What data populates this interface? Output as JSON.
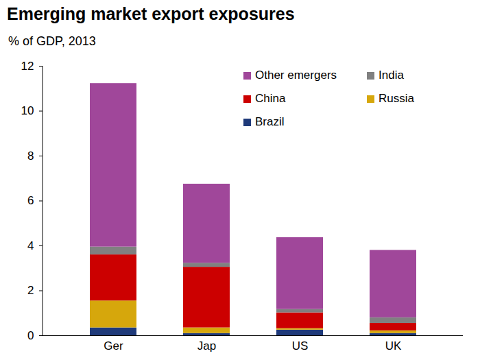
{
  "chart_data": {
    "type": "bar",
    "stacked": true,
    "title": "Emerging market export exposures",
    "subtitle": "% of GDP, 2013",
    "categories": [
      "Ger",
      "Jap",
      "US",
      "UK"
    ],
    "series": [
      {
        "name": "Brazil",
        "color": "#1f3a7a",
        "values": [
          0.35,
          0.1,
          0.25,
          0.1
        ]
      },
      {
        "name": "Russia",
        "color": "#d6a70c",
        "values": [
          1.2,
          0.25,
          0.07,
          0.12
        ]
      },
      {
        "name": "China",
        "color": "#cc0000",
        "values": [
          2.05,
          2.7,
          0.7,
          0.33
        ]
      },
      {
        "name": "India",
        "color": "#808080",
        "values": [
          0.35,
          0.18,
          0.15,
          0.25
        ]
      },
      {
        "name": "Other emergers",
        "color": "#a0479a",
        "values": [
          7.28,
          3.52,
          3.2,
          3.0
        ]
      }
    ],
    "ylim": [
      0,
      12
    ],
    "yticks": [
      0,
      2,
      4,
      6,
      8,
      10,
      12
    ],
    "legend": "top-right"
  }
}
